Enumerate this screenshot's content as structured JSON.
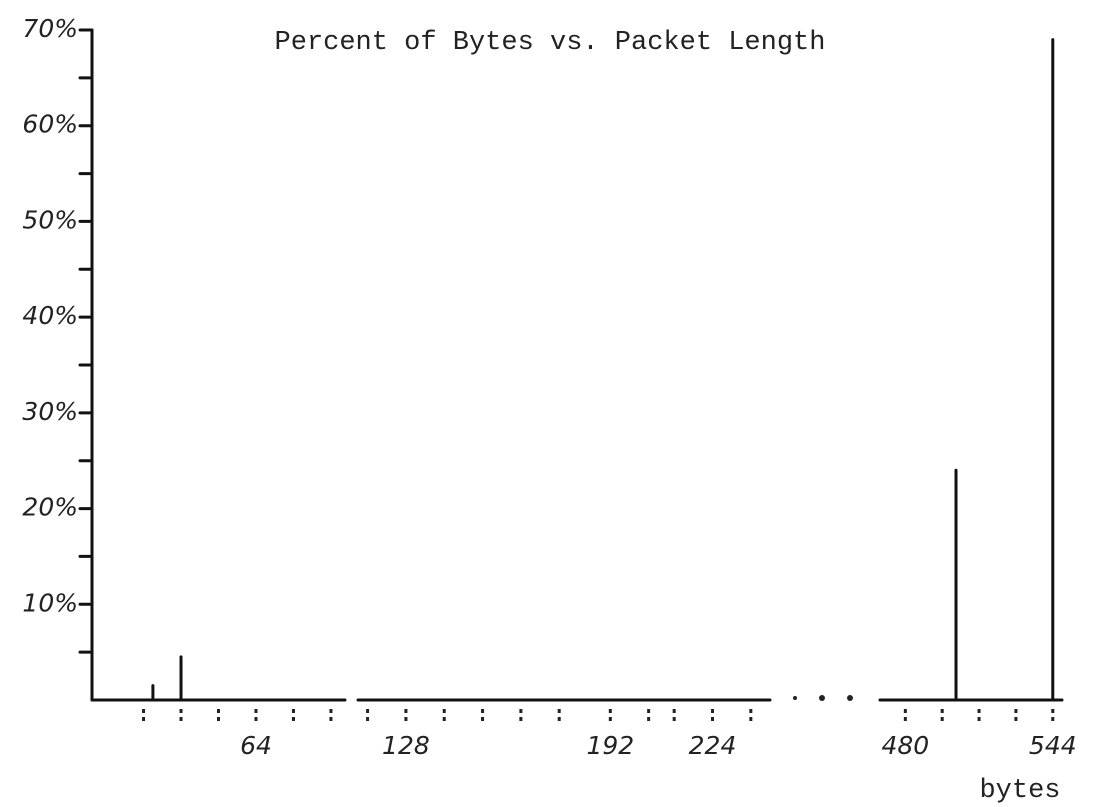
{
  "chart_data": {
    "type": "bar",
    "title": "Percent of Bytes vs. Packet Length",
    "x_label": "bytes",
    "ylim": [
      0,
      70
    ],
    "yticks": [
      {
        "value": 10,
        "label": "10%"
      },
      {
        "value": 20,
        "label": "20%"
      },
      {
        "value": 30,
        "label": "30%"
      },
      {
        "value": 40,
        "label": "40%"
      },
      {
        "value": 50,
        "label": "50%"
      },
      {
        "value": 60,
        "label": "60%"
      },
      {
        "value": 70,
        "label": "70%"
      }
    ],
    "y_minor_ticks": [
      5,
      15,
      25,
      35,
      45,
      55,
      65
    ],
    "x_segments": [
      {
        "xlim": [
          29,
          83
        ],
        "xticks": [
          64
        ],
        "x_minor_ticks": [
          40,
          48,
          56,
          72,
          80
        ]
      },
      {
        "xlim": [
          113,
          242
        ],
        "xticks": [
          128,
          192,
          224
        ],
        "x_minor_ticks": [
          116,
          140,
          152,
          164,
          176,
          204,
          212,
          236
        ]
      },
      {
        "xlim": [
          469,
          548
        ],
        "xticks": [
          480,
          544
        ],
        "x_minor_ticks": [
          496,
          512,
          528
        ]
      }
    ],
    "x": [
      42,
      48,
      502,
      544
    ],
    "values": [
      1.5,
      4.5,
      24,
      69
    ],
    "color": "#111111"
  }
}
